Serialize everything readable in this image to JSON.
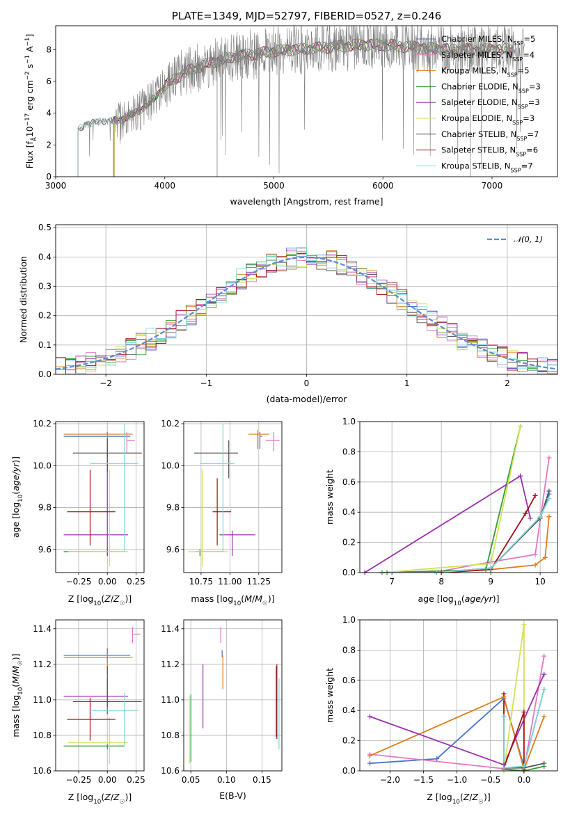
{
  "colors": {
    "chabrier_miles": "#4c72d0",
    "salpeter_miles": "#e377c2",
    "kroupa_miles": "#e07b18",
    "chabrier_elodie": "#2ca02c",
    "salpeter_elodie": "#9b2fae",
    "kroupa_elodie": "#d4e157",
    "chabrier_stelib": "#555555",
    "salpeter_stelib": "#a50f15",
    "kroupa_stelib": "#7fd6d6",
    "data": "#808080",
    "gauss": "#5a8ad8",
    "grid": "#b0b0b0"
  },
  "chart_data": [
    {
      "id": "spectrum",
      "type": "line",
      "title": "PLATE=1349, MJD=52797, FIBERID=0527, z=0.246",
      "xlabel": "wavelength [Angstrom, rest frame]",
      "ylabel": "Flux [f_λ 10^-17 erg cm^-2 s^-1 A^-1]",
      "xlim": [
        3000,
        7600
      ],
      "ylim": [
        0,
        9.5
      ],
      "xticks": [
        "3000",
        "4000",
        "5000",
        "6000",
        "7000"
      ],
      "yticks": [
        "0",
        "2",
        "4",
        "6",
        "8"
      ],
      "grid": false,
      "legend_position": "upper-right",
      "legend": [
        "Chabrier MILES, N_SSP=5",
        "Salpeter MILES, N_SSP=4",
        "Kroupa MILES, N_SSP=5",
        "Chabrier ELODIE, N_SSP=3",
        "Salpeter ELODIE, N_SSP=3",
        "Kroupa ELODIE, N_SSP=3",
        "Chabrier STELIB, N_SSP=7",
        "Salpeter STELIB, N_SSP=6",
        "Kroupa STELIB, N_SSP=7"
      ],
      "continuum_x": [
        3200,
        3300,
        3400,
        3500,
        3600,
        3700,
        3800,
        3900,
        4000,
        4100,
        4200,
        4300,
        4400,
        4500,
        4600,
        4800,
        5000,
        5200,
        5400,
        5600,
        5800,
        6000,
        6200,
        6400,
        6600,
        6800,
        7000,
        7200,
        7300
      ],
      "continuum_y": [
        3.0,
        3.3,
        3.5,
        3.5,
        3.6,
        3.9,
        4.3,
        4.9,
        5.7,
        6.2,
        6.6,
        6.9,
        7.1,
        7.3,
        7.5,
        7.7,
        7.9,
        8.0,
        8.1,
        8.2,
        8.3,
        8.3,
        8.2,
        8.1,
        8.0,
        8.0,
        8.0,
        8.0,
        8.0
      ]
    },
    {
      "id": "residuals",
      "type": "histogram",
      "xlabel": "(data-model)/error",
      "ylabel": "Normed distribution",
      "xlim": [
        -2.5,
        2.5
      ],
      "ylim": [
        0,
        0.51
      ],
      "xticks": [
        "−2",
        "−1",
        "0",
        "1",
        "2"
      ],
      "yticks": [
        "0.0",
        "0.1",
        "0.2",
        "0.3",
        "0.4",
        "0.5"
      ],
      "grid": true,
      "legend_position": "upper-right",
      "legend": [
        "𝒩(0, 1)"
      ],
      "bin_width": 0.1
    },
    {
      "id": "age_vs_Z",
      "type": "errorbar",
      "xlabel": "Z [log10(Z/Z☉)]",
      "ylabel": "age [log10(age/yr)]",
      "xlim": [
        -0.45,
        0.32
      ],
      "ylim": [
        9.49,
        10.21
      ],
      "xticks": [
        "−0.25",
        "0.00",
        "0.25"
      ],
      "yticks": [
        "9.6",
        "9.8",
        "10.0",
        "10.2"
      ],
      "grid": true,
      "points": [
        {
          "model": "chabrier_miles",
          "x": 0.0,
          "xerr": [
            0.38,
            0.2
          ],
          "y": 10.14,
          "yerr": [
            0.09,
            0.02
          ]
        },
        {
          "model": "salpeter_miles",
          "x": 0.17,
          "xerr": [
            0.0,
            0.07
          ],
          "y": 10.12,
          "yerr": [
            0.06,
            0.04
          ]
        },
        {
          "model": "kroupa_miles",
          "x": 0.0,
          "xerr": [
            0.38,
            0.22
          ],
          "y": 10.15,
          "yerr": [
            0.07,
            0.01
          ]
        },
        {
          "model": "chabrier_elodie",
          "x": 0.0,
          "xerr": [
            0.38,
            0.15
          ],
          "y": 9.59,
          "yerr": [
            0.02,
            0.01
          ]
        },
        {
          "model": "salpeter_elodie",
          "x": 0.0,
          "xerr": [
            0.38,
            0.18
          ],
          "y": 9.67,
          "yerr": [
            0.1,
            0.4
          ]
        },
        {
          "model": "kroupa_elodie",
          "x": 0.02,
          "xerr": [
            0.36,
            0.16
          ],
          "y": 9.59,
          "yerr": [
            0.07,
            0.39
          ]
        },
        {
          "model": "chabrier_stelib",
          "x": 0.0,
          "xerr": [
            0.3,
            0.3
          ],
          "y": 10.06,
          "yerr": [
            0.09,
            0.07
          ]
        },
        {
          "model": "salpeter_stelib",
          "x": -0.15,
          "xerr": [
            0.2,
            0.22
          ],
          "y": 9.78,
          "yerr": [
            0.16,
            0.2
          ]
        },
        {
          "model": "kroupa_stelib",
          "x": 0.15,
          "xerr": [
            0.3,
            0.12
          ],
          "y": 10.01,
          "yerr": [
            0.42,
            0.19
          ]
        }
      ]
    },
    {
      "id": "age_vs_mass",
      "type": "errorbar",
      "xlabel": "mass [log10(M/M☉)]",
      "ylabel": "",
      "xlim": [
        10.6,
        11.45
      ],
      "ylim": [
        9.49,
        10.21
      ],
      "xticks": [
        "10.75",
        "11.00",
        "11.25"
      ],
      "yticks": [
        "9.6",
        "9.8",
        "10.0",
        "10.2"
      ],
      "grid": true,
      "points": [
        {
          "model": "chabrier_miles",
          "x": 11.26,
          "xerr": [
            0.0,
            0.02
          ],
          "y": 10.14,
          "yerr": [
            0.06,
            0.02
          ]
        },
        {
          "model": "salpeter_miles",
          "x": 11.38,
          "xerr": [
            0.07,
            0.05
          ],
          "y": 10.12,
          "yerr": [
            0.05,
            0.04
          ]
        },
        {
          "model": "kroupa_miles",
          "x": 11.24,
          "xerr": [
            0.08,
            0.1
          ],
          "y": 10.15,
          "yerr": [
            0.07,
            0.02
          ]
        },
        {
          "model": "chabrier_elodie",
          "x": 10.74,
          "xerr": [
            0.04,
            0.2
          ],
          "y": 9.59,
          "yerr": [
            0.02,
            0.01
          ]
        },
        {
          "model": "salpeter_elodie",
          "x": 11.02,
          "xerr": [
            0.11,
            0.2
          ],
          "y": 9.67,
          "yerr": [
            0.1,
            0.02
          ]
        },
        {
          "model": "kroupa_elodie",
          "x": 10.76,
          "xerr": [
            0.12,
            0.22
          ],
          "y": 9.59,
          "yerr": [
            0.07,
            0.39
          ]
        },
        {
          "model": "chabrier_stelib",
          "x": 10.99,
          "xerr": [
            0.3,
            0.08
          ],
          "y": 10.06,
          "yerr": [
            0.12,
            0.06
          ]
        },
        {
          "model": "salpeter_stelib",
          "x": 10.89,
          "xerr": [
            0.04,
            0.12
          ],
          "y": 9.78,
          "yerr": [
            0.16,
            0.16
          ]
        },
        {
          "model": "kroupa_stelib",
          "x": 10.94,
          "xerr": [
            0.2,
            0.1
          ],
          "y": 10.01,
          "yerr": [
            0.42,
            0.19
          ]
        }
      ]
    },
    {
      "id": "weight_vs_age",
      "type": "line",
      "xlabel": "age [log10(age/yr)]",
      "ylabel": "mass weight",
      "xlim": [
        6.35,
        10.35
      ],
      "ylim": [
        0,
        1.0
      ],
      "xticks": [
        "7",
        "8",
        "9",
        "10"
      ],
      "yticks": [
        "0.0",
        "0.2",
        "0.4",
        "0.6",
        "0.8",
        "1.0"
      ],
      "grid": true,
      "series": [
        {
          "model": "chabrier_miles",
          "x": [
            6.8,
            7.9,
            9.0,
            10.0,
            10.18
          ],
          "y": [
            0.0,
            0.0,
            0.03,
            0.36,
            0.52
          ]
        },
        {
          "model": "salpeter_miles",
          "x": [
            6.8,
            8.0,
            9.0,
            9.9,
            10.18
          ],
          "y": [
            0.0,
            0.01,
            0.07,
            0.12,
            0.76
          ]
        },
        {
          "model": "kroupa_miles",
          "x": [
            6.8,
            7.9,
            9.0,
            9.9,
            10.1,
            10.18
          ],
          "y": [
            0.0,
            0.0,
            0.02,
            0.05,
            0.1,
            0.37
          ]
        },
        {
          "model": "chabrier_elodie",
          "x": [
            6.9,
            8.9,
            9.6
          ],
          "y": [
            0.0,
            0.02,
            0.97
          ]
        },
        {
          "model": "salpeter_elodie",
          "x": [
            6.45,
            9.6,
            9.8
          ],
          "y": [
            0.0,
            0.64,
            0.36
          ]
        },
        {
          "model": "kroupa_elodie",
          "x": [
            6.8,
            9.0,
            9.6
          ],
          "y": [
            0.0,
            0.06,
            0.97
          ]
        },
        {
          "model": "chabrier_stelib",
          "x": [
            6.8,
            7.9,
            9.0,
            10.0,
            10.18
          ],
          "y": [
            0.0,
            0.0,
            0.03,
            0.36,
            0.54
          ]
        },
        {
          "model": "salpeter_stelib",
          "x": [
            6.8,
            8.0,
            9.0,
            9.7,
            9.9
          ],
          "y": [
            0.0,
            0.0,
            0.02,
            0.39,
            0.51
          ]
        },
        {
          "model": "kroupa_stelib",
          "x": [
            6.8,
            7.9,
            9.0,
            10.0,
            10.18
          ],
          "y": [
            0.0,
            0.0,
            0.03,
            0.37,
            0.49
          ]
        }
      ]
    },
    {
      "id": "mass_vs_Z",
      "type": "errorbar",
      "xlabel": "Z [log10(Z/Z☉)]",
      "ylabel": "mass [log10(M/M☉)]",
      "xlim": [
        -0.45,
        0.32
      ],
      "ylim": [
        10.6,
        11.45
      ],
      "xticks": [
        "−0.25",
        "0.00",
        "0.25"
      ],
      "yticks": [
        "10.6",
        "10.8",
        "11.0",
        "11.2",
        "11.4"
      ],
      "grid": true,
      "points": [
        {
          "model": "chabrier_miles",
          "x": 0.0,
          "xerr": [
            0.38,
            0.2
          ],
          "y": 11.25,
          "yerr": [
            0.04,
            0.04
          ]
        },
        {
          "model": "salpeter_miles",
          "x": 0.22,
          "xerr": [
            0.0,
            0.07
          ],
          "y": 11.37,
          "yerr": [
            0.05,
            0.04
          ]
        },
        {
          "model": "kroupa_miles",
          "x": 0.0,
          "xerr": [
            0.38,
            0.22
          ],
          "y": 11.24,
          "yerr": [
            0.1,
            0.02
          ]
        },
        {
          "model": "chabrier_elodie",
          "x": 0.0,
          "xerr": [
            0.38,
            0.15
          ],
          "y": 10.74,
          "yerr": [
            0.02,
            0.01
          ]
        },
        {
          "model": "salpeter_elodie",
          "x": 0.0,
          "xerr": [
            0.38,
            0.18
          ],
          "y": 11.02,
          "yerr": [
            0.1,
            0.1
          ]
        },
        {
          "model": "kroupa_elodie",
          "x": 0.02,
          "xerr": [
            0.36,
            0.16
          ],
          "y": 10.76,
          "yerr": [
            0.12,
            0.14
          ]
        },
        {
          "model": "chabrier_stelib",
          "x": 0.0,
          "xerr": [
            0.3,
            0.3
          ],
          "y": 10.99,
          "yerr": [
            0.03,
            0.2
          ]
        },
        {
          "model": "salpeter_stelib",
          "x": -0.15,
          "xerr": [
            0.2,
            0.22
          ],
          "y": 10.89,
          "yerr": [
            0.12,
            0.12
          ]
        },
        {
          "model": "kroupa_stelib",
          "x": 0.15,
          "xerr": [
            0.3,
            0.12
          ],
          "y": 10.94,
          "yerr": [
            0.2,
            0.1
          ]
        }
      ]
    },
    {
      "id": "mass_vs_ebv",
      "type": "errorbar",
      "xlabel": "E(B-V)",
      "ylabel": "",
      "xlim": [
        0.04,
        0.178
      ],
      "ylim": [
        10.6,
        11.45
      ],
      "xticks": [
        "0.05",
        "0.10",
        "0.15"
      ],
      "yticks": [
        "10.6",
        "10.8",
        "11.0",
        "11.2",
        "11.4"
      ],
      "grid": true,
      "points": [
        {
          "model": "chabrier_miles",
          "x": 0.094,
          "y": 11.26,
          "yerr": [
            0.02,
            0.02
          ]
        },
        {
          "model": "salpeter_miles",
          "x": 0.092,
          "y": 11.37,
          "yerr": [
            0.05,
            0.04
          ]
        },
        {
          "model": "kroupa_miles",
          "x": 0.095,
          "y": 11.17,
          "yerr": [
            0.11,
            0.08
          ]
        },
        {
          "model": "chabrier_elodie",
          "x": 0.05,
          "y": 10.85,
          "yerr": [
            0.2,
            0.18
          ]
        },
        {
          "model": "salpeter_elodie",
          "x": 0.067,
          "y": 11.02,
          "yerr": [
            0.18,
            0.18
          ]
        },
        {
          "model": "kroupa_elodie",
          "x": 0.048,
          "y": 10.84,
          "yerr": [
            0.2,
            0.18
          ]
        },
        {
          "model": "chabrier_stelib",
          "x": 0.17,
          "y": 10.99,
          "yerr": [
            0.2,
            0.2
          ]
        },
        {
          "model": "salpeter_stelib",
          "x": 0.171,
          "y": 10.98,
          "yerr": [
            0.2,
            0.22
          ]
        },
        {
          "model": "kroupa_stelib",
          "x": 0.174,
          "y": 10.92,
          "yerr": [
            0.2,
            0.2
          ]
        }
      ]
    },
    {
      "id": "weight_vs_Z",
      "type": "line",
      "xlabel": "Z [log10(Z/Z☉)]",
      "ylabel": "mass weight",
      "xlim": [
        -2.45,
        0.5
      ],
      "ylim": [
        0,
        1.0
      ],
      "xticks": [
        "−2.0",
        "−1.5",
        "−1.0",
        "−0.5",
        "0.0"
      ],
      "yticks": [
        "0.0",
        "0.2",
        "0.4",
        "0.6",
        "0.8",
        "1.0"
      ],
      "grid": true,
      "series": [
        {
          "model": "chabrier_miles",
          "x": [
            -2.3,
            -1.3,
            -0.3,
            0.0,
            0.3
          ],
          "y": [
            0.05,
            0.08,
            0.48,
            0.03,
            0.54
          ]
        },
        {
          "model": "salpeter_miles",
          "x": [
            -2.3,
            0.0,
            0.0,
            0.3
          ],
          "y": [
            0.11,
            0.0,
            0.01,
            0.76
          ]
        },
        {
          "model": "kroupa_miles",
          "x": [
            -2.3,
            -0.3,
            0.0,
            0.3
          ],
          "y": [
            0.1,
            0.49,
            0.01,
            0.36
          ]
        },
        {
          "model": "chabrier_elodie",
          "x": [
            -0.3,
            0.0,
            0.3
          ],
          "y": [
            0.01,
            0.0,
            0.03
          ]
        },
        {
          "model": "salpeter_elodie",
          "x": [
            -2.3,
            -0.3,
            0.3
          ],
          "y": [
            0.36,
            0.04,
            0.64
          ]
        },
        {
          "model": "kroupa_elodie",
          "x": [
            -0.3,
            0.0,
            0.0
          ],
          "y": [
            0.0,
            0.97,
            0.0
          ]
        },
        {
          "model": "chabrier_stelib",
          "x": [
            -0.3,
            -0.3,
            0.0,
            0.3
          ],
          "y": [
            0.36,
            0.02,
            0.02,
            0.05
          ]
        },
        {
          "model": "salpeter_stelib",
          "x": [
            -0.3,
            -0.3,
            0.0,
            0.0
          ],
          "y": [
            0.51,
            0.02,
            0.39,
            0.0
          ]
        },
        {
          "model": "kroupa_stelib",
          "x": [
            -0.3,
            -0.3,
            0.0,
            0.3
          ],
          "y": [
            0.36,
            0.02,
            0.03,
            0.54
          ]
        }
      ]
    }
  ]
}
